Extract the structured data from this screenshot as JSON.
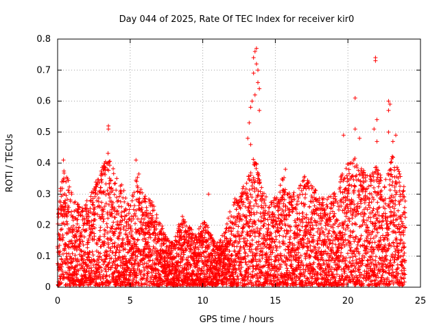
{
  "chart_data": {
    "type": "scatter",
    "title": "Day 044 of 2025, Rate Of TEC Index for receiver kir0",
    "xlabel": "GPS time / hours",
    "ylabel": "ROTI / TECUs",
    "xlim": [
      0,
      25
    ],
    "ylim": [
      0,
      0.8
    ],
    "xticks": [
      0,
      5,
      10,
      15,
      20,
      25
    ],
    "yticks": [
      0,
      0.1,
      0.2,
      0.3,
      0.4,
      0.5,
      0.6,
      0.7,
      0.8
    ],
    "xtick_labels": [
      "0",
      "5",
      "10",
      "15",
      "20",
      "25"
    ],
    "ytick_labels": [
      "0",
      "0.1",
      "0.2",
      "0.3",
      "0.4",
      "0.5",
      "0.6",
      "0.7",
      "0.8"
    ],
    "grid": true,
    "marker": "+",
    "color": "#ff0000",
    "envelope": [
      {
        "x": 0.0,
        "y": 0.28
      },
      {
        "x": 0.5,
        "y": 0.4
      },
      {
        "x": 1.0,
        "y": 0.3
      },
      {
        "x": 1.5,
        "y": 0.27
      },
      {
        "x": 2.0,
        "y": 0.28
      },
      {
        "x": 2.5,
        "y": 0.34
      },
      {
        "x": 3.0,
        "y": 0.38
      },
      {
        "x": 3.5,
        "y": 0.44
      },
      {
        "x": 4.0,
        "y": 0.36
      },
      {
        "x": 4.5,
        "y": 0.33
      },
      {
        "x": 5.0,
        "y": 0.26
      },
      {
        "x": 5.5,
        "y": 0.38
      },
      {
        "x": 6.0,
        "y": 0.3
      },
      {
        "x": 6.5,
        "y": 0.28
      },
      {
        "x": 7.0,
        "y": 0.22
      },
      {
        "x": 7.5,
        "y": 0.16
      },
      {
        "x": 8.0,
        "y": 0.14
      },
      {
        "x": 8.5,
        "y": 0.24
      },
      {
        "x": 9.0,
        "y": 0.2
      },
      {
        "x": 9.5,
        "y": 0.17
      },
      {
        "x": 10.0,
        "y": 0.22
      },
      {
        "x": 10.5,
        "y": 0.19
      },
      {
        "x": 11.0,
        "y": 0.15
      },
      {
        "x": 11.5,
        "y": 0.18
      },
      {
        "x": 12.0,
        "y": 0.27
      },
      {
        "x": 12.5,
        "y": 0.31
      },
      {
        "x": 13.0,
        "y": 0.34
      },
      {
        "x": 13.5,
        "y": 0.45
      },
      {
        "x": 14.0,
        "y": 0.34
      },
      {
        "x": 14.5,
        "y": 0.28
      },
      {
        "x": 15.0,
        "y": 0.3
      },
      {
        "x": 15.5,
        "y": 0.37
      },
      {
        "x": 16.0,
        "y": 0.3
      },
      {
        "x": 16.5,
        "y": 0.31
      },
      {
        "x": 17.0,
        "y": 0.36
      },
      {
        "x": 17.5,
        "y": 0.33
      },
      {
        "x": 18.0,
        "y": 0.31
      },
      {
        "x": 18.5,
        "y": 0.29
      },
      {
        "x": 19.0,
        "y": 0.3
      },
      {
        "x": 19.5,
        "y": 0.36
      },
      {
        "x": 20.0,
        "y": 0.4
      },
      {
        "x": 20.5,
        "y": 0.42
      },
      {
        "x": 21.0,
        "y": 0.38
      },
      {
        "x": 21.5,
        "y": 0.36
      },
      {
        "x": 22.0,
        "y": 0.4
      },
      {
        "x": 22.5,
        "y": 0.35
      },
      {
        "x": 23.0,
        "y": 0.43
      },
      {
        "x": 23.5,
        "y": 0.38
      },
      {
        "x": 23.9,
        "y": 0.32
      }
    ],
    "peaks": [
      {
        "x": 0.4,
        "y": 0.41
      },
      {
        "x": 3.5,
        "y": 0.52
      },
      {
        "x": 3.5,
        "y": 0.51
      },
      {
        "x": 5.4,
        "y": 0.41
      },
      {
        "x": 10.4,
        "y": 0.3
      },
      {
        "x": 13.2,
        "y": 0.53
      },
      {
        "x": 13.3,
        "y": 0.58
      },
      {
        "x": 13.5,
        "y": 0.74
      },
      {
        "x": 13.6,
        "y": 0.76
      },
      {
        "x": 13.7,
        "y": 0.77
      },
      {
        "x": 13.8,
        "y": 0.7
      },
      {
        "x": 13.9,
        "y": 0.64
      },
      {
        "x": 13.6,
        "y": 0.62
      },
      {
        "x": 13.4,
        "y": 0.6
      },
      {
        "x": 13.8,
        "y": 0.66
      },
      {
        "x": 13.5,
        "y": 0.69
      },
      {
        "x": 13.9,
        "y": 0.57
      },
      {
        "x": 13.7,
        "y": 0.72
      },
      {
        "x": 13.1,
        "y": 0.48
      },
      {
        "x": 13.3,
        "y": 0.46
      },
      {
        "x": 19.7,
        "y": 0.49
      },
      {
        "x": 20.5,
        "y": 0.61
      },
      {
        "x": 20.5,
        "y": 0.51
      },
      {
        "x": 21.9,
        "y": 0.74
      },
      {
        "x": 21.9,
        "y": 0.73
      },
      {
        "x": 22.0,
        "y": 0.54
      },
      {
        "x": 21.8,
        "y": 0.51
      },
      {
        "x": 22.0,
        "y": 0.47
      },
      {
        "x": 22.8,
        "y": 0.6
      },
      {
        "x": 22.9,
        "y": 0.59
      },
      {
        "x": 22.8,
        "y": 0.57
      },
      {
        "x": 22.8,
        "y": 0.5
      },
      {
        "x": 23.1,
        "y": 0.47
      },
      {
        "x": 23.3,
        "y": 0.49
      },
      {
        "x": 20.8,
        "y": 0.48
      },
      {
        "x": 15.7,
        "y": 0.38
      }
    ]
  }
}
